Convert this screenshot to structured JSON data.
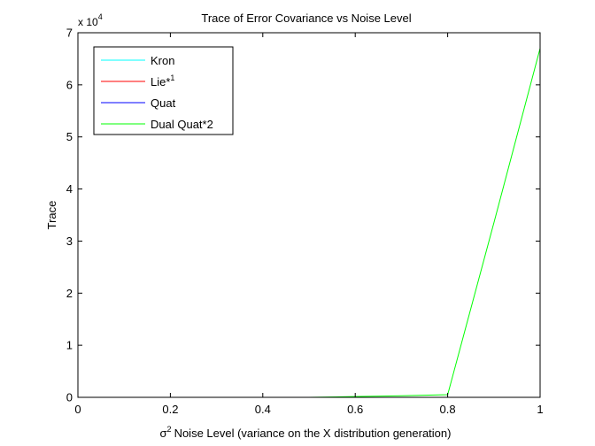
{
  "chart_data": {
    "type": "line",
    "title": "Trace of Error Covariance vs Noise Level",
    "xlabel_symbol": "σ",
    "xlabel_symbol_sup": "2",
    "xlabel_text": "Noise Level (variance on the X distribution generation)",
    "ylabel": "Trace",
    "y_multiplier_prefix": "x 10",
    "y_multiplier_exp": "4",
    "xlim": [
      0,
      1
    ],
    "ylim": [
      0,
      70000
    ],
    "x_ticks": [
      0,
      0.2,
      0.4,
      0.6,
      0.8,
      1
    ],
    "x_tick_labels": [
      "0",
      "0.2",
      "0.4",
      "0.6",
      "0.8",
      "1"
    ],
    "y_ticks": [
      0,
      10000,
      20000,
      30000,
      40000,
      50000,
      60000,
      70000
    ],
    "y_tick_labels": [
      "0",
      "1",
      "2",
      "3",
      "4",
      "5",
      "6",
      "7"
    ],
    "grid": false,
    "legend_position": "top-left",
    "series": [
      {
        "name": "Kron",
        "color": "#00ffff",
        "x": [
          0,
          0.1,
          0.2,
          0.3,
          0.4,
          0.5,
          0.6,
          0.7,
          0.8,
          0.9,
          1.0
        ],
        "y": [
          0,
          0,
          0,
          0,
          0,
          0,
          0,
          0,
          0,
          0,
          0
        ]
      },
      {
        "name": "Lie*",
        "name_sup": "1",
        "color": "#ff0000",
        "x": [
          0,
          0.1,
          0.2,
          0.3,
          0.4,
          0.5,
          0.6,
          0.7,
          0.8,
          0.9,
          1.0
        ],
        "y": [
          0,
          0,
          0,
          0,
          0,
          0,
          0,
          0,
          0,
          0,
          0
        ]
      },
      {
        "name": "Quat",
        "color": "#0000ff",
        "x": [
          0,
          0.1,
          0.2,
          0.3,
          0.4,
          0.5,
          0.6,
          0.7,
          0.8,
          0.9,
          1.0
        ],
        "y": [
          0,
          0,
          0,
          0,
          0,
          0,
          0,
          0,
          0,
          0,
          0
        ]
      },
      {
        "name": "Dual Quat*2",
        "color": "#00ff00",
        "x": [
          0,
          0.1,
          0.2,
          0.3,
          0.4,
          0.5,
          0.6,
          0.7,
          0.8,
          0.9,
          1.0
        ],
        "y": [
          0,
          0,
          0,
          0,
          0,
          0,
          150,
          300,
          500,
          33500,
          67000
        ]
      }
    ]
  }
}
